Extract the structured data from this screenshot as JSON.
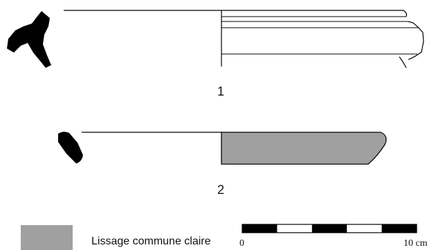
{
  "figures": [
    {
      "number": "1"
    },
    {
      "number": "2"
    }
  ],
  "legend": {
    "swatch_color": "#a0a0a0",
    "label": "Lissage commune claire"
  },
  "scale_bar": {
    "min_label": "0",
    "max_label": "10 cm",
    "segments": 5
  },
  "colors": {
    "section_fill": "#000000",
    "outline": "#000000",
    "shading": "#a0a0a0"
  }
}
